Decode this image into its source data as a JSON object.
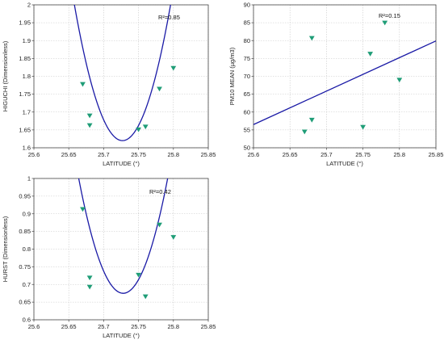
{
  "chart_data": [
    {
      "type": "scatter",
      "xlabel": "LATITUDE (°)",
      "ylabel": "HIGUCHI (Dimensionless)",
      "annotation": "R²=0.85",
      "xlim": [
        25.6,
        25.85
      ],
      "ylim": [
        1.6,
        2.0
      ],
      "xticks": [
        "25.6",
        "25.65",
        "25.7",
        "25.75",
        "25.8",
        "25.85"
      ],
      "yticks": [
        "1.6",
        "1.65",
        "1.7",
        "1.75",
        "1.8",
        "1.85",
        "1.9",
        "1.95",
        "2"
      ],
      "grid": true,
      "marker_color": "#1f9d77",
      "line_color": "#1a1aa6",
      "points": [
        {
          "x": 25.67,
          "y": 1.778
        },
        {
          "x": 25.68,
          "y": 1.69
        },
        {
          "x": 25.68,
          "y": 1.663
        },
        {
          "x": 25.75,
          "y": 1.651
        },
        {
          "x": 25.76,
          "y": 1.659
        },
        {
          "x": 25.78,
          "y": 1.765
        },
        {
          "x": 25.8,
          "y": 1.823
        }
      ],
      "fit": {
        "kind": "quadratic",
        "vertex_x": 25.727,
        "vertex_y": 1.62,
        "a": 80
      }
    },
    {
      "type": "scatter",
      "xlabel": "LATITUDE (°)",
      "ylabel": "PM10 MEAN (µg/m3)",
      "annotation": "R²=0.15",
      "xlim": [
        25.6,
        25.85
      ],
      "ylim": [
        50,
        90
      ],
      "xticks": [
        "25.6",
        "25.65",
        "25.7",
        "25.75",
        "25.8",
        "25.85"
      ],
      "yticks": [
        "50",
        "55",
        "60",
        "65",
        "70",
        "75",
        "80",
        "85",
        "90"
      ],
      "grid": true,
      "marker_color": "#1f9d77",
      "line_color": "#1a1aa6",
      "points": [
        {
          "x": 25.67,
          "y": 54.5
        },
        {
          "x": 25.68,
          "y": 57.8
        },
        {
          "x": 25.68,
          "y": 80.7
        },
        {
          "x": 25.75,
          "y": 55.8
        },
        {
          "x": 25.76,
          "y": 76.3
        },
        {
          "x": 25.78,
          "y": 85.0
        },
        {
          "x": 25.8,
          "y": 69.0
        }
      ],
      "fit": {
        "kind": "linear",
        "slope": 93.6,
        "intercept_at_xmin": 56.5
      }
    },
    {
      "type": "scatter",
      "xlabel": "LATITUDE (°)",
      "ylabel": "HURST (Dimensionless)",
      "annotation": "R²=0.42",
      "xlim": [
        25.6,
        25.85
      ],
      "ylim": [
        0.6,
        1.0
      ],
      "xticks": [
        "25.6",
        "25.65",
        "25.7",
        "25.75",
        "25.8",
        "25.85"
      ],
      "yticks": [
        "0.6",
        "0.65",
        "0.7",
        "0.75",
        "0.8",
        "0.85",
        "0.9",
        "0.95",
        "1"
      ],
      "grid": true,
      "marker_color": "#1f9d77",
      "line_color": "#1a1aa6",
      "points": [
        {
          "x": 25.67,
          "y": 0.913
        },
        {
          "x": 25.68,
          "y": 0.719
        },
        {
          "x": 25.68,
          "y": 0.693
        },
        {
          "x": 25.75,
          "y": 0.727
        },
        {
          "x": 25.76,
          "y": 0.666
        },
        {
          "x": 25.78,
          "y": 0.869
        },
        {
          "x": 25.8,
          "y": 0.834
        }
      ],
      "fit": {
        "kind": "quadratic",
        "vertex_x": 25.728,
        "vertex_y": 0.675,
        "a": 80
      }
    }
  ]
}
